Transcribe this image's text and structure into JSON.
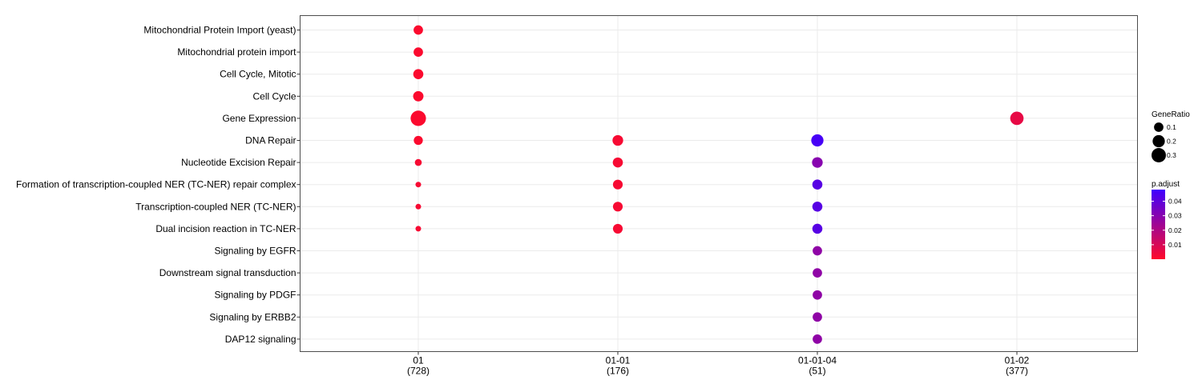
{
  "chart_data": {
    "type": "scatter",
    "categories_x": [
      {
        "id": "01",
        "count": "(728)"
      },
      {
        "id": "01-01",
        "count": "(176)"
      },
      {
        "id": "01-01-04",
        "count": "(51)"
      },
      {
        "id": "01-02",
        "count": "(377)"
      }
    ],
    "categories_y": [
      "Mitochondrial Protein Import (yeast)",
      "Mitochondrial protein import",
      "Cell Cycle, Mitotic",
      "Cell Cycle",
      "Gene Expression",
      "DNA Repair",
      "Nucleotide Excision Repair",
      "Formation of transcription-coupled NER (TC-NER) repair complex",
      "Transcription-coupled NER (TC-NER)",
      "Dual incision reaction in TC-NER",
      "Signaling by EGFR",
      "Downstream signal transduction",
      "Signaling by PDGF",
      "Signaling by ERBB2",
      "DAP12 signaling"
    ],
    "points": [
      {
        "x": "01",
        "y": "Mitochondrial Protein Import (yeast)",
        "gene_ratio": 0.1,
        "p_adjust": 0.001
      },
      {
        "x": "01",
        "y": "Mitochondrial protein import",
        "gene_ratio": 0.1,
        "p_adjust": 0.001
      },
      {
        "x": "01",
        "y": "Cell Cycle, Mitotic",
        "gene_ratio": 0.12,
        "p_adjust": 0.001
      },
      {
        "x": "01",
        "y": "Cell Cycle",
        "gene_ratio": 0.13,
        "p_adjust": 0.001
      },
      {
        "x": "01",
        "y": "Gene Expression",
        "gene_ratio": 0.35,
        "p_adjust": 0.001
      },
      {
        "x": "01",
        "y": "DNA Repair",
        "gene_ratio": 0.09,
        "p_adjust": 0.001
      },
      {
        "x": "01",
        "y": "Nucleotide Excision Repair",
        "gene_ratio": 0.04,
        "p_adjust": 0.002
      },
      {
        "x": "01",
        "y": "Formation of transcription-coupled NER (TC-NER) repair complex",
        "gene_ratio": 0.02,
        "p_adjust": 0.002
      },
      {
        "x": "01",
        "y": "Transcription-coupled NER (TC-NER)",
        "gene_ratio": 0.02,
        "p_adjust": 0.002
      },
      {
        "x": "01",
        "y": "Dual incision reaction in TC-NER",
        "gene_ratio": 0.02,
        "p_adjust": 0.002
      },
      {
        "x": "01-01",
        "y": "DNA Repair",
        "gene_ratio": 0.14,
        "p_adjust": 0.002
      },
      {
        "x": "01-01",
        "y": "Nucleotide Excision Repair",
        "gene_ratio": 0.12,
        "p_adjust": 0.002
      },
      {
        "x": "01-01",
        "y": "Formation of transcription-coupled NER (TC-NER) repair complex",
        "gene_ratio": 0.11,
        "p_adjust": 0.002
      },
      {
        "x": "01-01",
        "y": "Transcription-coupled NER (TC-NER)",
        "gene_ratio": 0.11,
        "p_adjust": 0.002
      },
      {
        "x": "01-01",
        "y": "Dual incision reaction in TC-NER",
        "gene_ratio": 0.11,
        "p_adjust": 0.002
      },
      {
        "x": "01-02",
        "y": "Gene Expression",
        "gene_ratio": 0.25,
        "p_adjust": 0.006
      },
      {
        "x": "01-01-04",
        "y": "DNA Repair",
        "gene_ratio": 0.2,
        "p_adjust": 0.046
      },
      {
        "x": "01-01-04",
        "y": "Nucleotide Excision Repair",
        "gene_ratio": 0.14,
        "p_adjust": 0.03
      },
      {
        "x": "01-01-04",
        "y": "Formation of transcription-coupled NER (TC-NER) repair complex",
        "gene_ratio": 0.12,
        "p_adjust": 0.042
      },
      {
        "x": "01-01-04",
        "y": "Transcription-coupled NER (TC-NER)",
        "gene_ratio": 0.12,
        "p_adjust": 0.042
      },
      {
        "x": "01-01-04",
        "y": "Dual incision reaction in TC-NER",
        "gene_ratio": 0.12,
        "p_adjust": 0.042
      },
      {
        "x": "01-01-04",
        "y": "Signaling by EGFR",
        "gene_ratio": 0.1,
        "p_adjust": 0.028
      },
      {
        "x": "01-01-04",
        "y": "Downstream signal transduction",
        "gene_ratio": 0.1,
        "p_adjust": 0.028
      },
      {
        "x": "01-01-04",
        "y": "Signaling by PDGF",
        "gene_ratio": 0.1,
        "p_adjust": 0.028
      },
      {
        "x": "01-01-04",
        "y": "Signaling by ERBB2",
        "gene_ratio": 0.1,
        "p_adjust": 0.028
      },
      {
        "x": "01-01-04",
        "y": "DAP12 signaling",
        "gene_ratio": 0.1,
        "p_adjust": 0.028
      }
    ],
    "size_legend": {
      "title": "GeneRatio",
      "values": [
        0.1,
        0.2,
        0.3
      ],
      "labels": [
        "0.1",
        "0.2",
        "0.3"
      ]
    },
    "color_legend": {
      "title": "p.adjust",
      "range": [
        0,
        0.048
      ],
      "ticks": [
        0.01,
        0.02,
        0.03,
        0.04
      ],
      "tick_labels": [
        "0.01",
        "0.02",
        "0.03",
        "0.04"
      ],
      "low_color": "#ff0a2a",
      "high_color": "#3f00ff"
    },
    "grid": true,
    "legend_position": "right"
  }
}
